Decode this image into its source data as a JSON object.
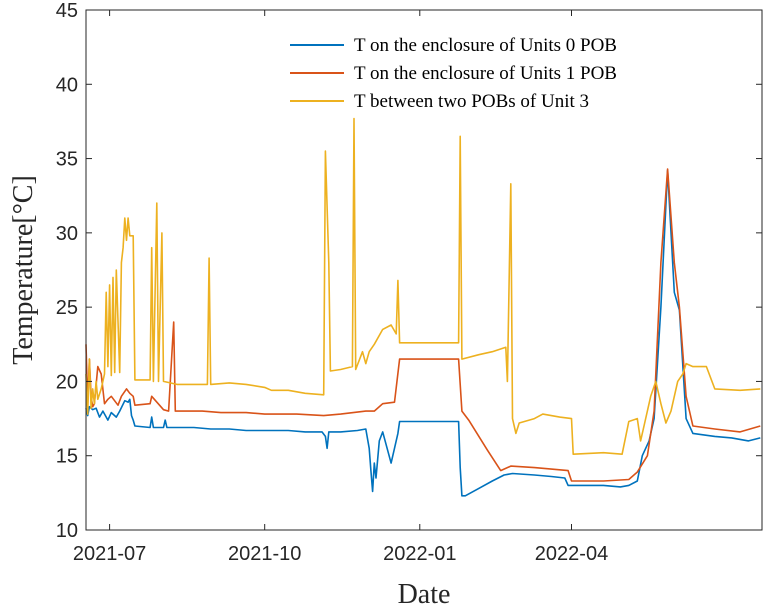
{
  "chart_data": {
    "type": "line",
    "title": "",
    "xlabel": "Date",
    "ylabel": "Temperature[°C]",
    "ylim": [
      10,
      45
    ],
    "xlim": [
      "2021-06-17",
      "2022-07-23"
    ],
    "yticks": [
      "10",
      "15",
      "20",
      "25",
      "30",
      "35",
      "40",
      "45"
    ],
    "xticks": [
      {
        "date": "2021-07-01",
        "label": "2021-07"
      },
      {
        "date": "2021-10-01",
        "label": "2021-10"
      },
      {
        "date": "2022-01-01",
        "label": "2022-01"
      },
      {
        "date": "2022-04-01",
        "label": "2022-04"
      }
    ],
    "grid": false,
    "legend_position": "top-right",
    "series": [
      {
        "name": "T on the enclosure of Units 0 POB",
        "color": "#0072BD",
        "points": [
          [
            "2021-06-17",
            18.2
          ],
          [
            "2021-06-18",
            17.7
          ],
          [
            "2021-06-19",
            18.3
          ],
          [
            "2021-06-21",
            18.1
          ],
          [
            "2021-06-23",
            18.2
          ],
          [
            "2021-06-25",
            17.6
          ],
          [
            "2021-06-27",
            18.0
          ],
          [
            "2021-06-30",
            17.4
          ],
          [
            "2021-07-02",
            17.9
          ],
          [
            "2021-07-05",
            17.6
          ],
          [
            "2021-07-07",
            18.0
          ],
          [
            "2021-07-10",
            18.7
          ],
          [
            "2021-07-12",
            18.6
          ],
          [
            "2021-07-13",
            18.8
          ],
          [
            "2021-07-14",
            17.7
          ],
          [
            "2021-07-15",
            17.4
          ],
          [
            "2021-07-16",
            17.0
          ],
          [
            "2021-07-25",
            16.9
          ],
          [
            "2021-07-26",
            17.6
          ],
          [
            "2021-07-27",
            16.9
          ],
          [
            "2021-08-02",
            16.9
          ],
          [
            "2021-08-03",
            17.4
          ],
          [
            "2021-08-04",
            16.9
          ],
          [
            "2021-08-10",
            16.9
          ],
          [
            "2021-08-20",
            16.9
          ],
          [
            "2021-08-30",
            16.8
          ],
          [
            "2021-09-10",
            16.8
          ],
          [
            "2021-09-20",
            16.7
          ],
          [
            "2021-10-01",
            16.7
          ],
          [
            "2021-10-15",
            16.7
          ],
          [
            "2021-10-25",
            16.6
          ],
          [
            "2021-11-04",
            16.6
          ],
          [
            "2021-11-06",
            16.3
          ],
          [
            "2021-11-07",
            15.5
          ],
          [
            "2021-11-08",
            16.6
          ],
          [
            "2021-11-15",
            16.6
          ],
          [
            "2021-11-25",
            16.7
          ],
          [
            "2021-11-30",
            16.8
          ],
          [
            "2021-12-02",
            15.5
          ],
          [
            "2021-12-03",
            14.0
          ],
          [
            "2021-12-04",
            12.6
          ],
          [
            "2021-12-05",
            14.5
          ],
          [
            "2021-12-06",
            13.5
          ],
          [
            "2021-12-08",
            16.0
          ],
          [
            "2021-12-10",
            16.6
          ],
          [
            "2021-12-15",
            14.5
          ],
          [
            "2021-12-17",
            15.5
          ],
          [
            "2021-12-19",
            16.5
          ],
          [
            "2021-12-20",
            17.3
          ],
          [
            "2022-01-24",
            17.3
          ],
          [
            "2022-01-25",
            14.2
          ],
          [
            "2022-01-26",
            12.3
          ],
          [
            "2022-01-28",
            12.3
          ],
          [
            "2022-02-05",
            12.8
          ],
          [
            "2022-02-13",
            13.3
          ],
          [
            "2022-02-20",
            13.7
          ],
          [
            "2022-02-25",
            13.8
          ],
          [
            "2022-03-10",
            13.7
          ],
          [
            "2022-03-20",
            13.6
          ],
          [
            "2022-03-28",
            13.5
          ],
          [
            "2022-03-30",
            13.0
          ],
          [
            "2022-04-10",
            13.0
          ],
          [
            "2022-04-20",
            13.0
          ],
          [
            "2022-04-30",
            12.9
          ],
          [
            "2022-05-05",
            13.0
          ],
          [
            "2022-05-10",
            13.3
          ],
          [
            "2022-05-13",
            15.0
          ],
          [
            "2022-05-17",
            16.0
          ],
          [
            "2022-05-20",
            17.5
          ],
          [
            "2022-05-24",
            25.0
          ],
          [
            "2022-05-28",
            34.2
          ],
          [
            "2022-06-01",
            26.0
          ],
          [
            "2022-06-04",
            24.8
          ],
          [
            "2022-06-08",
            17.5
          ],
          [
            "2022-06-12",
            16.5
          ],
          [
            "2022-06-25",
            16.3
          ],
          [
            "2022-07-05",
            16.2
          ],
          [
            "2022-07-15",
            16.0
          ],
          [
            "2022-07-22",
            16.2
          ]
        ]
      },
      {
        "name": "T on the enclosure of Units 1 POB",
        "color": "#D95319",
        "points": [
          [
            "2021-06-17",
            22.5
          ],
          [
            "2021-06-18",
            18.5
          ],
          [
            "2021-06-19",
            21.5
          ],
          [
            "2021-06-20",
            19.0
          ],
          [
            "2021-06-21",
            18.3
          ],
          [
            "2021-06-22",
            18.5
          ],
          [
            "2021-06-24",
            21.0
          ],
          [
            "2021-06-26",
            20.5
          ],
          [
            "2021-06-28",
            18.5
          ],
          [
            "2021-06-30",
            18.8
          ],
          [
            "2021-07-02",
            19.0
          ],
          [
            "2021-07-06",
            18.4
          ],
          [
            "2021-07-08",
            19.0
          ],
          [
            "2021-07-11",
            19.5
          ],
          [
            "2021-07-13",
            19.2
          ],
          [
            "2021-07-15",
            19.0
          ],
          [
            "2021-07-16",
            18.4
          ],
          [
            "2021-07-25",
            18.5
          ],
          [
            "2021-07-26",
            19.0
          ],
          [
            "2021-08-02",
            18.1
          ],
          [
            "2021-08-05",
            18.0
          ],
          [
            "2021-08-08",
            24.0
          ],
          [
            "2021-08-09",
            18.0
          ],
          [
            "2021-08-15",
            18.0
          ],
          [
            "2021-08-25",
            18.0
          ],
          [
            "2021-09-05",
            17.9
          ],
          [
            "2021-09-20",
            17.9
          ],
          [
            "2021-10-01",
            17.8
          ],
          [
            "2021-10-20",
            17.8
          ],
          [
            "2021-11-05",
            17.7
          ],
          [
            "2021-11-15",
            17.8
          ],
          [
            "2021-11-30",
            18.0
          ],
          [
            "2021-12-05",
            18.0
          ],
          [
            "2021-12-10",
            18.5
          ],
          [
            "2021-12-17",
            18.6
          ],
          [
            "2021-12-20",
            21.5
          ],
          [
            "2022-01-24",
            21.5
          ],
          [
            "2022-01-26",
            18.0
          ],
          [
            "2022-01-30",
            17.4
          ],
          [
            "2022-02-10",
            15.4
          ],
          [
            "2022-02-18",
            14.0
          ],
          [
            "2022-02-24",
            14.3
          ],
          [
            "2022-03-10",
            14.2
          ],
          [
            "2022-03-20",
            14.1
          ],
          [
            "2022-03-30",
            14.0
          ],
          [
            "2022-04-01",
            13.3
          ],
          [
            "2022-04-20",
            13.3
          ],
          [
            "2022-05-05",
            13.4
          ],
          [
            "2022-05-10",
            13.9
          ],
          [
            "2022-05-16",
            15.0
          ],
          [
            "2022-05-20",
            18.0
          ],
          [
            "2022-05-24",
            28.0
          ],
          [
            "2022-05-28",
            34.3
          ],
          [
            "2022-06-01",
            28.0
          ],
          [
            "2022-06-04",
            25.0
          ],
          [
            "2022-06-08",
            19.0
          ],
          [
            "2022-06-12",
            17.0
          ],
          [
            "2022-06-25",
            16.8
          ],
          [
            "2022-07-10",
            16.6
          ],
          [
            "2022-07-22",
            17.0
          ]
        ]
      },
      {
        "name": "T between two POBs of Unit 3",
        "color": "#EDB120",
        "points": [
          [
            "2021-06-17",
            20.5
          ],
          [
            "2021-06-18",
            17.8
          ],
          [
            "2021-06-19",
            21.5
          ],
          [
            "2021-06-20",
            18.2
          ],
          [
            "2021-06-21",
            19.5
          ],
          [
            "2021-06-22",
            18.5
          ],
          [
            "2021-06-23",
            20.0
          ],
          [
            "2021-06-24",
            18.8
          ],
          [
            "2021-06-26",
            19.5
          ],
          [
            "2021-06-28",
            20.5
          ],
          [
            "2021-06-29",
            26.0
          ],
          [
            "2021-06-30",
            21.0
          ],
          [
            "2021-07-01",
            26.5
          ],
          [
            "2021-07-02",
            20.4
          ],
          [
            "2021-07-03",
            27.0
          ],
          [
            "2021-07-04",
            20.6
          ],
          [
            "2021-07-05",
            27.5
          ],
          [
            "2021-07-07",
            20.6
          ],
          [
            "2021-07-08",
            28.0
          ],
          [
            "2021-07-09",
            29.0
          ],
          [
            "2021-07-10",
            31.0
          ],
          [
            "2021-07-11",
            29.5
          ],
          [
            "2021-07-12",
            31.0
          ],
          [
            "2021-07-13",
            29.8
          ],
          [
            "2021-07-15",
            29.8
          ],
          [
            "2021-07-16",
            20.1
          ],
          [
            "2021-07-25",
            20.1
          ],
          [
            "2021-07-26",
            29.0
          ],
          [
            "2021-07-27",
            20.0
          ],
          [
            "2021-07-29",
            32.0
          ],
          [
            "2021-07-30",
            20.0
          ],
          [
            "2021-08-01",
            30.0
          ],
          [
            "2021-08-02",
            20.0
          ],
          [
            "2021-08-10",
            19.8
          ],
          [
            "2021-08-20",
            19.8
          ],
          [
            "2021-08-28",
            19.8
          ],
          [
            "2021-08-29",
            28.3
          ],
          [
            "2021-08-30",
            19.8
          ],
          [
            "2021-09-10",
            19.9
          ],
          [
            "2021-09-20",
            19.8
          ],
          [
            "2021-10-01",
            19.6
          ],
          [
            "2021-10-05",
            19.4
          ],
          [
            "2021-10-15",
            19.4
          ],
          [
            "2021-10-25",
            19.2
          ],
          [
            "2021-11-05",
            19.1
          ],
          [
            "2021-11-06",
            35.5
          ],
          [
            "2021-11-08",
            28.0
          ],
          [
            "2021-11-09",
            20.7
          ],
          [
            "2021-11-15",
            20.8
          ],
          [
            "2021-11-22",
            21.0
          ],
          [
            "2021-11-23",
            37.7
          ],
          [
            "2021-11-24",
            20.8
          ],
          [
            "2021-11-28",
            22.0
          ],
          [
            "2021-11-30",
            21.2
          ],
          [
            "2021-12-02",
            22.0
          ],
          [
            "2021-12-05",
            22.5
          ],
          [
            "2021-12-10",
            23.5
          ],
          [
            "2021-12-15",
            23.8
          ],
          [
            "2021-12-18",
            23.2
          ],
          [
            "2021-12-19",
            26.8
          ],
          [
            "2021-12-20",
            22.6
          ],
          [
            "2022-01-24",
            22.6
          ],
          [
            "2022-01-25",
            36.5
          ],
          [
            "2022-01-26",
            21.5
          ],
          [
            "2022-02-05",
            21.8
          ],
          [
            "2022-02-13",
            22.0
          ],
          [
            "2022-02-21",
            22.3
          ],
          [
            "2022-02-22",
            20.0
          ],
          [
            "2022-02-24",
            33.3
          ],
          [
            "2022-02-25",
            17.5
          ],
          [
            "2022-02-27",
            16.5
          ],
          [
            "2022-03-01",
            17.2
          ],
          [
            "2022-03-10",
            17.5
          ],
          [
            "2022-03-15",
            17.8
          ],
          [
            "2022-03-25",
            17.6
          ],
          [
            "2022-04-01",
            17.5
          ],
          [
            "2022-04-02",
            15.1
          ],
          [
            "2022-04-20",
            15.2
          ],
          [
            "2022-05-01",
            15.1
          ],
          [
            "2022-05-05",
            17.3
          ],
          [
            "2022-05-10",
            17.5
          ],
          [
            "2022-05-12",
            16.0
          ],
          [
            "2022-05-14",
            17.0
          ],
          [
            "2022-05-18",
            19.0
          ],
          [
            "2022-05-21",
            20.0
          ],
          [
            "2022-05-24",
            18.5
          ],
          [
            "2022-05-27",
            17.2
          ],
          [
            "2022-05-30",
            18.0
          ],
          [
            "2022-06-03",
            20.0
          ],
          [
            "2022-06-06",
            20.5
          ],
          [
            "2022-06-08",
            21.2
          ],
          [
            "2022-06-12",
            21.0
          ],
          [
            "2022-06-20",
            21.0
          ],
          [
            "2022-06-25",
            19.5
          ],
          [
            "2022-07-10",
            19.4
          ],
          [
            "2022-07-22",
            19.5
          ]
        ]
      }
    ]
  }
}
